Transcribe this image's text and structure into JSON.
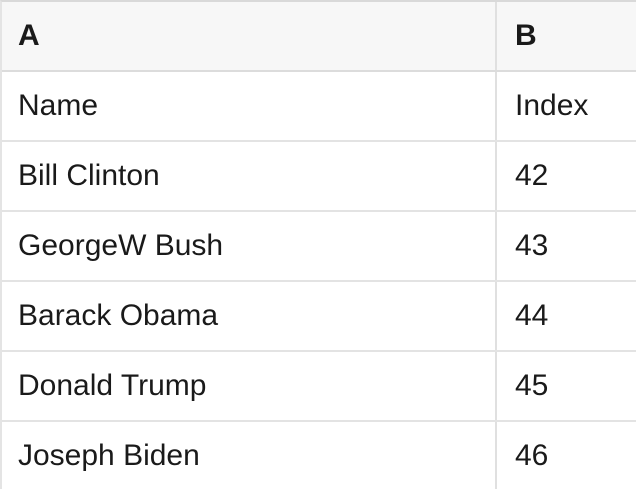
{
  "table": {
    "kind": "spreadsheet-preview",
    "columns": [
      {
        "label": "A"
      },
      {
        "label": "B"
      }
    ],
    "rows": [
      {
        "a": "Name",
        "b": "Index"
      },
      {
        "a": "Bill Clinton",
        "b": "42"
      },
      {
        "a": "GeorgeW Bush",
        "b": "43"
      },
      {
        "a": "Barack Obama",
        "b": "44"
      },
      {
        "a": "Donald Trump",
        "b": "45"
      },
      {
        "a": "Joseph Biden",
        "b": "46"
      }
    ]
  },
  "colors": {
    "header_background": "#f7f7f7",
    "row_background": "#ffffff",
    "grid_border": "#e3e3e3",
    "top_border": "#d9d9d9",
    "text": "#1a1a1a"
  }
}
